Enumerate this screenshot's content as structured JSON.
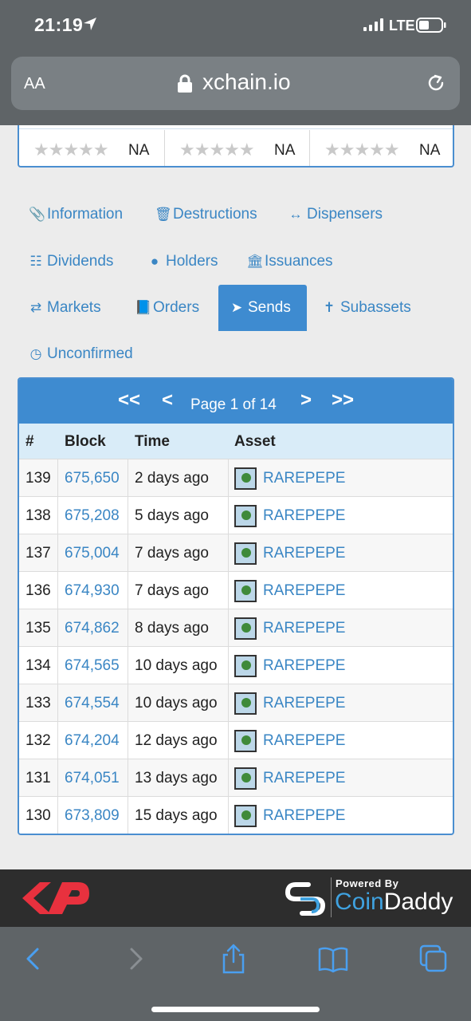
{
  "status_bar": {
    "time": "21:19",
    "network": "LTE"
  },
  "browser": {
    "text_size_label": "AA",
    "url": "xchain.io"
  },
  "ratings": [
    {
      "stars": "★★★★★",
      "value": "NA"
    },
    {
      "stars": "★★★★★",
      "value": "NA"
    },
    {
      "stars": "★★★★★",
      "value": "NA"
    }
  ],
  "tabs": [
    {
      "label": "Information",
      "icon": "paperclip-icon"
    },
    {
      "label": "Destructions",
      "icon": "trash-icon"
    },
    {
      "label": "Dispensers",
      "icon": "arrows-horizontal-icon"
    },
    {
      "label": "Dividends",
      "icon": "sitemap-icon"
    },
    {
      "label": "Holders",
      "icon": "user-icon"
    },
    {
      "label": "Issuances",
      "icon": "bank-icon"
    },
    {
      "label": "Markets",
      "icon": "exchange-icon"
    },
    {
      "label": "Orders",
      "icon": "book-icon"
    },
    {
      "label": "Sends",
      "icon": "paper-plane-icon",
      "active": true
    },
    {
      "label": "Subassets",
      "icon": "child-icon"
    },
    {
      "label": "Unconfirmed",
      "icon": "clock-icon"
    }
  ],
  "pager": {
    "first": "<<",
    "prev": "<",
    "text": "Page 1 of 14",
    "next": ">",
    "last": ">>"
  },
  "table": {
    "columns": [
      "#",
      "Block",
      "Time",
      "Asset"
    ],
    "rows": [
      {
        "num": "139",
        "block": "675,650",
        "time": "2 days ago",
        "asset": "RAREPEPE"
      },
      {
        "num": "138",
        "block": "675,208",
        "time": "5 days ago",
        "asset": "RAREPEPE"
      },
      {
        "num": "137",
        "block": "675,004",
        "time": "7 days ago",
        "asset": "RAREPEPE"
      },
      {
        "num": "136",
        "block": "674,930",
        "time": "7 days ago",
        "asset": "RAREPEPE"
      },
      {
        "num": "135",
        "block": "674,862",
        "time": "8 days ago",
        "asset": "RAREPEPE"
      },
      {
        "num": "134",
        "block": "674,565",
        "time": "10 days ago",
        "asset": "RAREPEPE"
      },
      {
        "num": "133",
        "block": "674,554",
        "time": "10 days ago",
        "asset": "RAREPEPE"
      },
      {
        "num": "132",
        "block": "674,204",
        "time": "12 days ago",
        "asset": "RAREPEPE"
      },
      {
        "num": "131",
        "block": "674,051",
        "time": "13 days ago",
        "asset": "RAREPEPE"
      },
      {
        "num": "130",
        "block": "673,809",
        "time": "15 days ago",
        "asset": "RAREPEPE"
      }
    ]
  },
  "footer": {
    "powered_by": "Powered By",
    "brand_a": "Coin",
    "brand_b": "Daddy"
  },
  "colors": {
    "accent": "#3e8bd0",
    "link": "#3a86c4",
    "header_row": "#d9ecf8",
    "chrome": "#5f6467",
    "footer": "#2d2d2d",
    "brand_red": "#e8313e"
  }
}
